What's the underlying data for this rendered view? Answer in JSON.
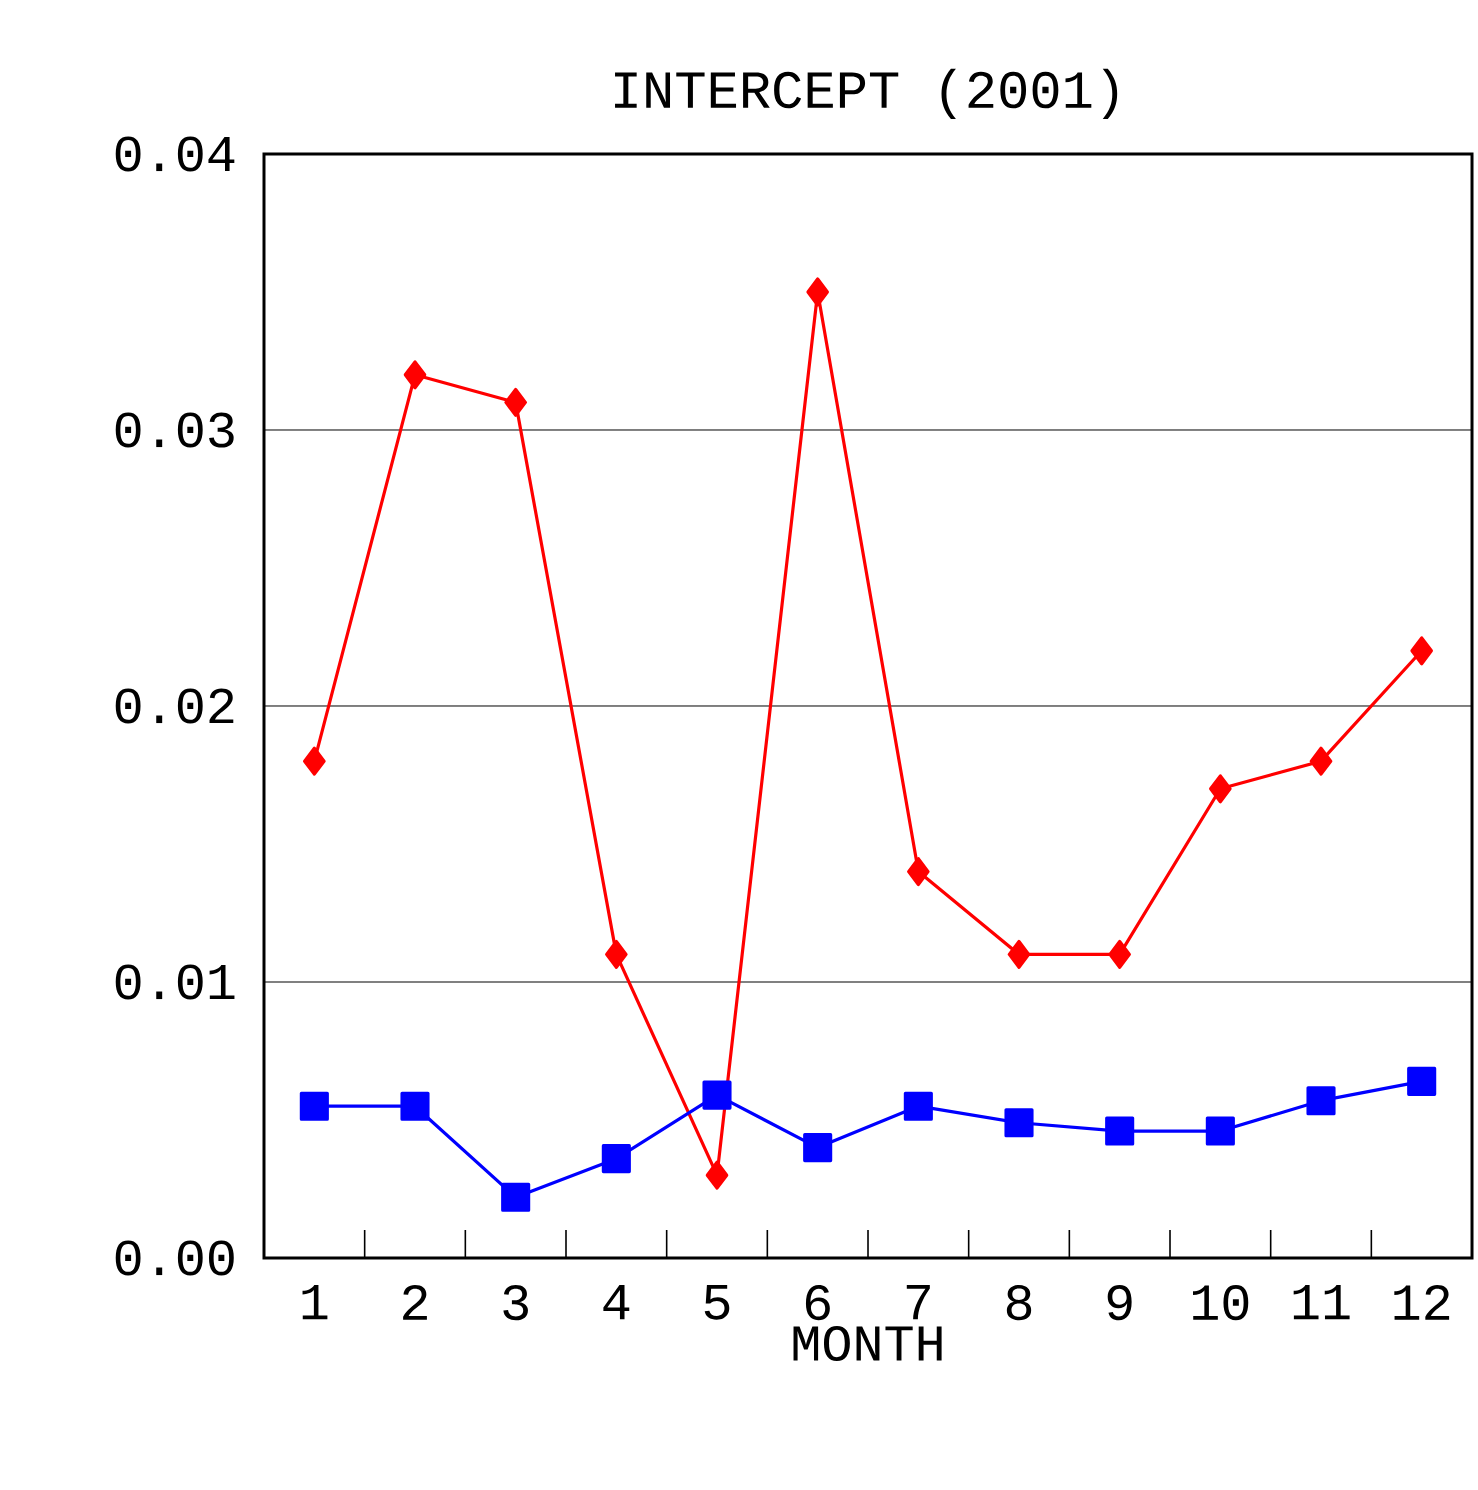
{
  "chart_data": {
    "type": "line",
    "title": "INTERCEPT (2001)",
    "xlabel": "MONTH",
    "categories": [
      "1",
      "2",
      "3",
      "4",
      "5",
      "6",
      "7",
      "8",
      "9",
      "10",
      "11",
      "12"
    ],
    "series": [
      {
        "color": "#ff0000",
        "marker": "diamond",
        "values": [
          0.018,
          0.032,
          0.031,
          0.011,
          0.003,
          0.035,
          0.014,
          0.011,
          0.011,
          0.017,
          0.018,
          0.022
        ]
      },
      {
        "color": "#0000ff",
        "marker": "square",
        "values": [
          0.0055,
          0.0055,
          0.0022,
          0.0036,
          0.0059,
          0.004,
          0.0055,
          0.0049,
          0.0046,
          0.0046,
          0.0057,
          0.0064
        ]
      }
    ],
    "ylim": [
      0,
      0.04
    ],
    "yticks": [
      {
        "value": 0,
        "label": "0.00"
      },
      {
        "value": 0.01,
        "label": "0.01"
      },
      {
        "value": 0.02,
        "label": "0.02"
      },
      {
        "value": 0.03,
        "label": "0.03"
      },
      {
        "value": 0.04,
        "label": "0.04"
      }
    ],
    "grid": "y",
    "line_style": "solid"
  }
}
